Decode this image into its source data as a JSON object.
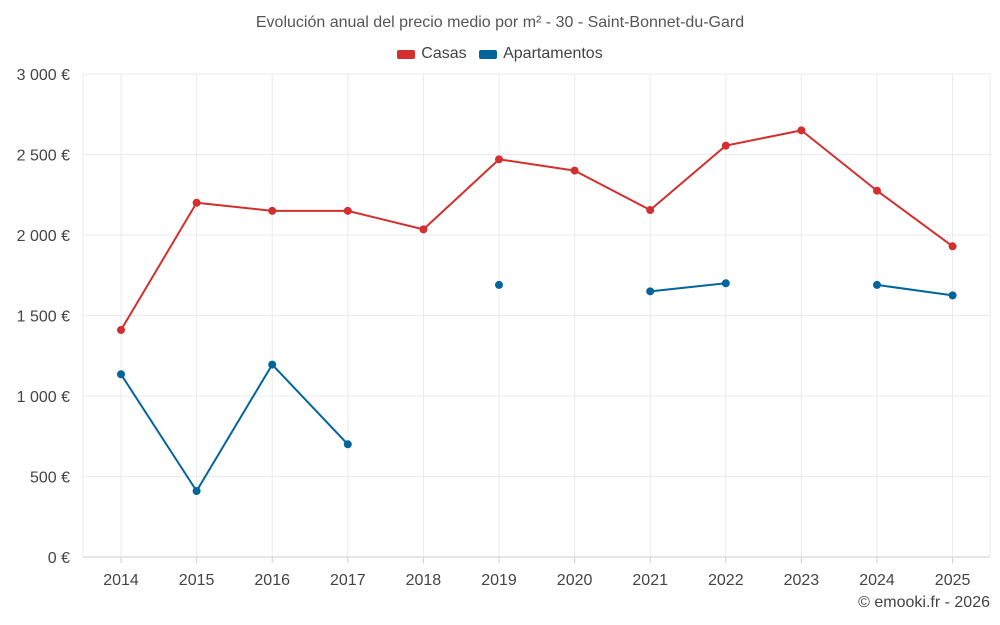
{
  "chart_data": {
    "type": "line",
    "title": "Evolución anual del precio medio por m² - 30 - Saint-Bonnet-du-Gard",
    "xlabel": "",
    "ylabel": "",
    "categories": [
      "2014",
      "2015",
      "2016",
      "2017",
      "2018",
      "2019",
      "2020",
      "2021",
      "2022",
      "2023",
      "2024",
      "2025"
    ],
    "y_ticks": [
      0,
      500,
      1000,
      1500,
      2000,
      2500,
      3000
    ],
    "y_tick_labels": [
      "0 €",
      "500 €",
      "1 000 €",
      "1 500 €",
      "2 000 €",
      "2 500 €",
      "3 000 €"
    ],
    "ylim": [
      0,
      3000
    ],
    "grid": true,
    "legend_position": "top-center",
    "series": [
      {
        "name": "Casas",
        "color": "#d32f2f",
        "values": [
          1410,
          2200,
          2150,
          2150,
          2035,
          2470,
          2400,
          2155,
          2555,
          2650,
          2275,
          1930
        ]
      },
      {
        "name": "Apartamentos",
        "color": "#01659c",
        "values": [
          1135,
          410,
          1195,
          700,
          null,
          1690,
          null,
          1650,
          1700,
          null,
          1690,
          1625
        ]
      }
    ]
  },
  "credit": "© emooki.fr - 2026"
}
